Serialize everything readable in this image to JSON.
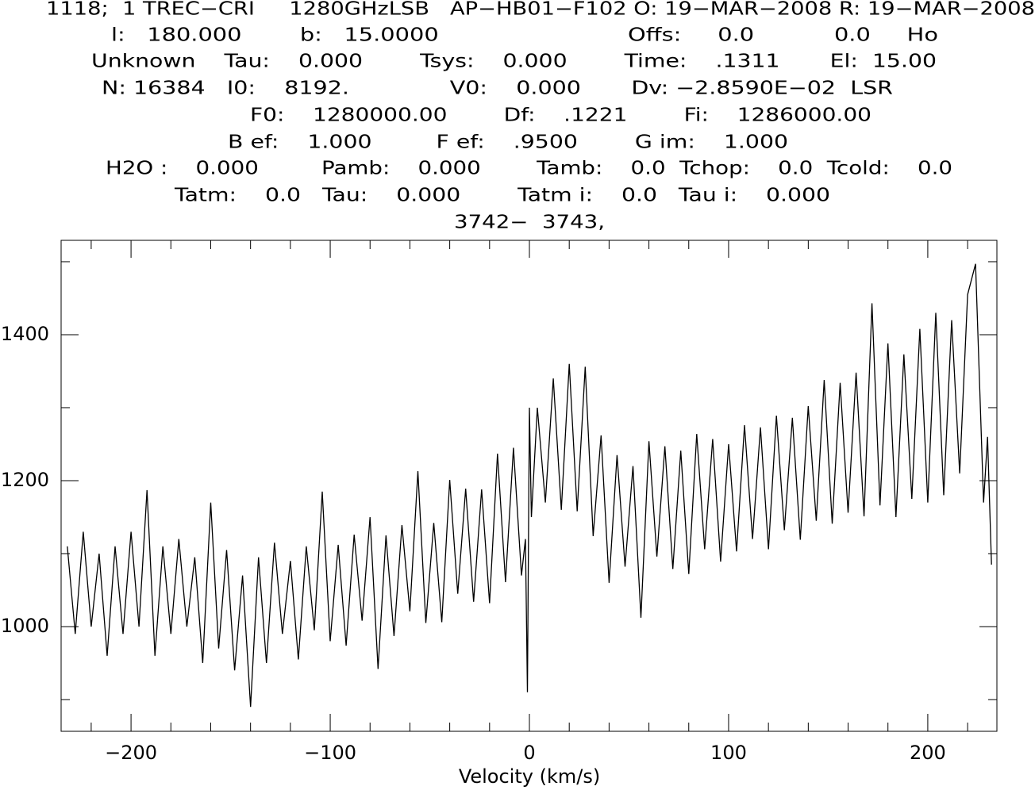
{
  "header": [
    "1118;  1 TREC−CRI     1280GHzLSB   AP−HB01−F102 O: 19−MAR−2008 R: 19−MAR−2008",
    "l:   180.000        b:   15.0000                          Offs:     0.0           0.0     Ho",
    "Unknown    Tau:    0.000        Tsys:    0.000        Time:    .1311       El:  15.00",
    "N: 16384   I0:    8192.              V0:    0.000       Dv: −2.8590E−02  LSR",
    "F0:    1280000.00        Df:    .1221        Fi:    1286000.00",
    "B ef:    1.000         F ef:    .9500        G im:    1.000",
    "H2O :    0.000         Pamb:    0.000        Tamb:    0.0  Tchop:    0.0  Tcold:    0.0",
    "Tatm:    0.0   Tau:    0.000        Tatm i:    0.0   Tau i:    0.000",
    "3742−  3743,"
  ],
  "chart_data": {
    "type": "line",
    "x_label": "Velocity (km/s)",
    "color": "#000000",
    "xlim": [
      -235.1,
      234.7
    ],
    "ylim": [
      856.5,
      1529.3
    ],
    "xticks": [
      {
        "value": -200,
        "label": "−200"
      },
      {
        "value": -100,
        "label": "−100"
      },
      0,
      100,
      200
    ],
    "xminor_ticks": [
      -220,
      -180,
      -160,
      -140,
      -120,
      -80,
      -60,
      -40,
      -20,
      20,
      40,
      60,
      80,
      120,
      140,
      160,
      180,
      220
    ],
    "yticks": [
      1000,
      1200,
      1400
    ],
    "yminor_ticks": [
      900,
      1100,
      1300,
      1500
    ],
    "x": [
      -232,
      -228,
      -224,
      -220,
      -216,
      -212,
      -208,
      -204,
      -200,
      -196,
      -192,
      -188,
      -184,
      -180,
      -176,
      -172,
      -168,
      -164,
      -160,
      -156,
      -152,
      -148,
      -144,
      -140,
      -136,
      -132,
      -128,
      -124,
      -120,
      -116,
      -112,
      -108,
      -104,
      -100,
      -96,
      -92,
      -88,
      -84,
      -80,
      -76,
      -72,
      -68,
      -64,
      -60,
      -56,
      -52,
      -48,
      -44,
      -40,
      -36,
      -32,
      -28,
      -24,
      -20,
      -16,
      -12,
      -8,
      -4,
      -2,
      -1,
      0,
      1,
      4,
      8,
      12,
      16,
      20,
      24,
      28,
      32,
      36,
      40,
      44,
      48,
      52,
      56,
      60,
      64,
      68,
      72,
      76,
      80,
      84,
      88,
      92,
      96,
      100,
      104,
      108,
      112,
      116,
      120,
      124,
      128,
      132,
      136,
      140,
      144,
      148,
      152,
      156,
      160,
      164,
      168,
      172,
      176,
      180,
      184,
      188,
      192,
      196,
      200,
      204,
      208,
      212,
      216,
      220,
      224,
      228,
      230,
      232
    ],
    "values": [
      1110,
      990,
      1130,
      1000,
      1100,
      960,
      1110,
      990,
      1130,
      1000,
      1187,
      960,
      1110,
      990,
      1120,
      1000,
      1095,
      950,
      1170,
      970,
      1105,
      940,
      1070,
      890,
      1095,
      950,
      1115,
      990,
      1090,
      955,
      1110,
      995,
      1185,
      980,
      1112,
      974,
      1126,
      1008,
      1150,
      942,
      1125,
      987,
      1139,
      1021,
      1213,
      1005,
      1142,
      1006,
      1201,
      1045,
      1189,
      1034,
      1188,
      1032,
      1237,
      1061,
      1245,
      1070,
      1120,
      910,
      1300,
      1150,
      1300,
      1170,
      1340,
      1160,
      1360,
      1158,
      1356,
      1124,
      1262,
      1060,
      1235,
      1082,
      1220,
      1012,
      1254,
      1096,
      1247,
      1079,
      1241,
      1072,
      1264,
      1106,
      1257,
      1089,
      1250,
      1103,
      1276,
      1120,
      1273,
      1106,
      1289,
      1132,
      1286,
      1119,
      1302,
      1145,
      1338,
      1141,
      1334,
      1156,
      1348,
      1151,
      1443,
      1166,
      1388,
      1150,
      1373,
      1175,
      1408,
      1170,
      1430,
      1180,
      1420,
      1210,
      1455,
      1497,
      1170,
      1260,
      1085
    ]
  }
}
